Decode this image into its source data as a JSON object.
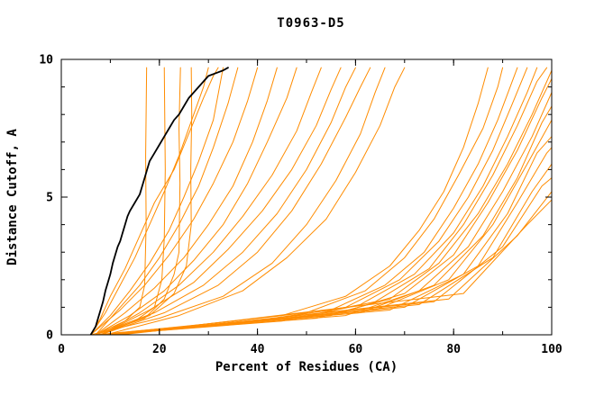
{
  "title": "T0963-D5",
  "chart_data": {
    "type": "line",
    "title": "T0963-D5",
    "xlabel": "Percent of Residues (CA)",
    "ylabel": "Distance Cutoff, A",
    "xlim": [
      0,
      100
    ],
    "ylim": [
      0,
      10
    ],
    "x_ticks": [
      0,
      20,
      40,
      60,
      80,
      100
    ],
    "y_ticks": [
      0,
      5,
      10
    ],
    "x_minor_step": 10,
    "y_minor_step": 1,
    "grid": false,
    "legend": "none",
    "colors": {
      "model_lines": "#ff8c00",
      "highlight_line": "#000000",
      "frame": "#000000",
      "background": "#ffffff"
    },
    "highlight_series": {
      "name": "highlighted-model",
      "points": [
        [
          6,
          0
        ],
        [
          7,
          0.3
        ],
        [
          7.5,
          0.6
        ],
        [
          8,
          0.9
        ],
        [
          8.5,
          1.2
        ],
        [
          9,
          1.6
        ],
        [
          9.5,
          1.9
        ],
        [
          10,
          2.2
        ],
        [
          10.5,
          2.6
        ],
        [
          11,
          2.9
        ],
        [
          11.5,
          3.2
        ],
        [
          12,
          3.4
        ],
        [
          12.5,
          3.7
        ],
        [
          13,
          4.0
        ],
        [
          13.5,
          4.3
        ],
        [
          14,
          4.5
        ],
        [
          15,
          4.8
        ],
        [
          16,
          5.1
        ],
        [
          16.5,
          5.4
        ],
        [
          17,
          5.7
        ],
        [
          17.5,
          6.0
        ],
        [
          18,
          6.3
        ],
        [
          19,
          6.6
        ],
        [
          20,
          6.9
        ],
        [
          21,
          7.2
        ],
        [
          22,
          7.5
        ],
        [
          23,
          7.8
        ],
        [
          24,
          8.0
        ],
        [
          25,
          8.3
        ],
        [
          26,
          8.6
        ],
        [
          27,
          8.8
        ],
        [
          28,
          9.0
        ],
        [
          29,
          9.2
        ],
        [
          30,
          9.4
        ],
        [
          31.5,
          9.5
        ],
        [
          33,
          9.6
        ],
        [
          34,
          9.7
        ]
      ]
    },
    "series": [
      {
        "points": [
          [
            7,
            0
          ],
          [
            13,
            0.5
          ],
          [
            16,
            1
          ],
          [
            17,
            1.8
          ],
          [
            17.3,
            4
          ],
          [
            17.2,
            6.5
          ],
          [
            17.4,
            9.7
          ]
        ]
      },
      {
        "points": [
          [
            8,
            0
          ],
          [
            15,
            0.5
          ],
          [
            19,
            1
          ],
          [
            20.5,
            2
          ],
          [
            21,
            3.5
          ],
          [
            21.2,
            6
          ],
          [
            21,
            9.7
          ]
        ]
      },
      {
        "points": [
          [
            7,
            0
          ],
          [
            17,
            0.6
          ],
          [
            21,
            1.3
          ],
          [
            23,
            2.2
          ],
          [
            24,
            3
          ],
          [
            24.2,
            5.5
          ],
          [
            24,
            7.5
          ],
          [
            24.3,
            9.7
          ]
        ]
      },
      {
        "points": [
          [
            8,
            0
          ],
          [
            18,
            0.7
          ],
          [
            23,
            1.5
          ],
          [
            25.5,
            2.5
          ],
          [
            26.5,
            4
          ],
          [
            26.4,
            6
          ],
          [
            26.6,
            8
          ],
          [
            26.5,
            9.7
          ]
        ]
      },
      {
        "points": [
          [
            6,
            0
          ],
          [
            9,
            0.8
          ],
          [
            12,
            1.8
          ],
          [
            15,
            2.8
          ],
          [
            18,
            4
          ],
          [
            21,
            5.2
          ],
          [
            24,
            6.5
          ],
          [
            27,
            8
          ],
          [
            29,
            9
          ],
          [
            30,
            9.7
          ]
        ]
      },
      {
        "points": [
          [
            6,
            0
          ],
          [
            10,
            0.7
          ],
          [
            14,
            1.6
          ],
          [
            18,
            2.6
          ],
          [
            22,
            3.8
          ],
          [
            25,
            5
          ],
          [
            28,
            6.3
          ],
          [
            31,
            7.8
          ],
          [
            33,
            9.7
          ]
        ]
      },
      {
        "points": [
          [
            7,
            0
          ],
          [
            11,
            0.8
          ],
          [
            16,
            1.8
          ],
          [
            20,
            2.8
          ],
          [
            24,
            4
          ],
          [
            28,
            5.4
          ],
          [
            31,
            6.8
          ],
          [
            34,
            8.4
          ],
          [
            36,
            9.7
          ]
        ]
      },
      {
        "points": [
          [
            6,
            0
          ],
          [
            12,
            0.9
          ],
          [
            17,
            1.8
          ],
          [
            22,
            2.9
          ],
          [
            27,
            4.2
          ],
          [
            31,
            5.5
          ],
          [
            35,
            7
          ],
          [
            38,
            8.5
          ],
          [
            40,
            9.7
          ]
        ]
      },
      {
        "points": [
          [
            7,
            0
          ],
          [
            13,
            0.8
          ],
          [
            19,
            1.7
          ],
          [
            25,
            2.8
          ],
          [
            30,
            4
          ],
          [
            35,
            5.4
          ],
          [
            39,
            7
          ],
          [
            42,
            8.5
          ],
          [
            44,
            9.7
          ]
        ]
      },
      {
        "points": [
          [
            7,
            0
          ],
          [
            14,
            0.7
          ],
          [
            21,
            1.6
          ],
          [
            27,
            2.7
          ],
          [
            33,
            4
          ],
          [
            38,
            5.5
          ],
          [
            42,
            7
          ],
          [
            46,
            8.6
          ],
          [
            48,
            9.7
          ]
        ]
      },
      {
        "points": [
          [
            8,
            0
          ],
          [
            16,
            0.8
          ],
          [
            24,
            1.8
          ],
          [
            31,
            3
          ],
          [
            37,
            4.3
          ],
          [
            43,
            5.8
          ],
          [
            48,
            7.4
          ],
          [
            51,
            8.8
          ],
          [
            53,
            9.7
          ]
        ]
      },
      {
        "points": [
          [
            8,
            0
          ],
          [
            18,
            0.9
          ],
          [
            27,
            1.9
          ],
          [
            34,
            3.1
          ],
          [
            41,
            4.5
          ],
          [
            47,
            6
          ],
          [
            52,
            7.6
          ],
          [
            55,
            8.9
          ],
          [
            57,
            9.7
          ]
        ]
      },
      {
        "points": [
          [
            7,
            0
          ],
          [
            19,
            0.8
          ],
          [
            29,
            1.8
          ],
          [
            37,
            3
          ],
          [
            44,
            4.4
          ],
          [
            50,
            6
          ],
          [
            55,
            7.7
          ],
          [
            58,
            9
          ],
          [
            60,
            9.7
          ]
        ]
      },
      {
        "points": [
          [
            8,
            0
          ],
          [
            21,
            0.8
          ],
          [
            32,
            1.8
          ],
          [
            40,
            3
          ],
          [
            47,
            4.5
          ],
          [
            53,
            6.2
          ],
          [
            58,
            7.9
          ],
          [
            61,
            9
          ],
          [
            63,
            9.7
          ]
        ]
      },
      {
        "points": [
          [
            6,
            0
          ],
          [
            20,
            0.6
          ],
          [
            33,
            1.4
          ],
          [
            43,
            2.6
          ],
          [
            50,
            4
          ],
          [
            56,
            5.6
          ],
          [
            61,
            7.3
          ],
          [
            64,
            8.8
          ],
          [
            66,
            9.7
          ]
        ]
      },
      {
        "points": [
          [
            9,
            0
          ],
          [
            24,
            0.7
          ],
          [
            37,
            1.6
          ],
          [
            46,
            2.8
          ],
          [
            54,
            4.2
          ],
          [
            60,
            5.9
          ],
          [
            65,
            7.6
          ],
          [
            68,
            9
          ],
          [
            70,
            9.7
          ]
        ]
      },
      {
        "points": [
          [
            7,
            0
          ],
          [
            25,
            0.3
          ],
          [
            45,
            0.7
          ],
          [
            58,
            1.4
          ],
          [
            67,
            2.5
          ],
          [
            73,
            3.8
          ],
          [
            78,
            5.2
          ],
          [
            82,
            6.8
          ],
          [
            85,
            8.4
          ],
          [
            87,
            9.7
          ]
        ]
      },
      {
        "points": [
          [
            8,
            0
          ],
          [
            30,
            0.4
          ],
          [
            50,
            0.8
          ],
          [
            62,
            1.6
          ],
          [
            70,
            2.8
          ],
          [
            76,
            4.2
          ],
          [
            81,
            5.8
          ],
          [
            86,
            7.5
          ],
          [
            89,
            9
          ],
          [
            90,
            9.7
          ]
        ]
      },
      {
        "points": [
          [
            7,
            0
          ],
          [
            35,
            0.4
          ],
          [
            55,
            0.9
          ],
          [
            66,
            1.8
          ],
          [
            74,
            3
          ],
          [
            80,
            4.6
          ],
          [
            85,
            6.2
          ],
          [
            89,
            7.8
          ],
          [
            93,
            9.7
          ]
        ]
      },
      {
        "points": [
          [
            8,
            0
          ],
          [
            40,
            0.5
          ],
          [
            58,
            1
          ],
          [
            69,
            2
          ],
          [
            77,
            3.4
          ],
          [
            83,
            5
          ],
          [
            88,
            6.7
          ],
          [
            92,
            8.4
          ],
          [
            95,
            9.7
          ]
        ]
      },
      {
        "points": [
          [
            9,
            0
          ],
          [
            45,
            0.5
          ],
          [
            61,
            1.1
          ],
          [
            72,
            2.2
          ],
          [
            80,
            3.7
          ],
          [
            86,
            5.4
          ],
          [
            91,
            7.2
          ],
          [
            95,
            8.8
          ],
          [
            97,
            9.7
          ]
        ]
      },
      {
        "points": [
          [
            8,
            0
          ],
          [
            48,
            0.6
          ],
          [
            64,
            1.2
          ],
          [
            75,
            2.4
          ],
          [
            82,
            4
          ],
          [
            88,
            5.8
          ],
          [
            93,
            7.6
          ],
          [
            97,
            9.2
          ],
          [
            99,
            9.7
          ]
        ]
      },
      {
        "points": [
          [
            7,
            0
          ],
          [
            52,
            0.6
          ],
          [
            67,
            1.3
          ],
          [
            77,
            2.6
          ],
          [
            85,
            4.4
          ],
          [
            91,
            6.2
          ],
          [
            96,
            8
          ],
          [
            100,
            9.6
          ]
        ]
      },
      {
        "points": [
          [
            8,
            0
          ],
          [
            55,
            0.7
          ],
          [
            70,
            1.5
          ],
          [
            80,
            2.9
          ],
          [
            87,
            4.8
          ],
          [
            93,
            6.7
          ],
          [
            98,
            8.6
          ],
          [
            100,
            9.3
          ]
        ]
      },
      {
        "points": [
          [
            9,
            0
          ],
          [
            58,
            0.7
          ],
          [
            73,
            1.6
          ],
          [
            83,
            3.2
          ],
          [
            90,
            5.2
          ],
          [
            96,
            7.2
          ],
          [
            100,
            8.8
          ]
        ]
      },
      {
        "points": [
          [
            8,
            0
          ],
          [
            61,
            0.8
          ],
          [
            76,
            1.8
          ],
          [
            86,
            3.6
          ],
          [
            93,
            5.7
          ],
          [
            98,
            7.7
          ],
          [
            100,
            8.3
          ]
        ]
      },
      {
        "points": [
          [
            10,
            0
          ],
          [
            64,
            0.9
          ],
          [
            79,
            2
          ],
          [
            88,
            4
          ],
          [
            95,
            6.2
          ],
          [
            100,
            7.8
          ]
        ]
      },
      {
        "points": [
          [
            9,
            0
          ],
          [
            67,
            0.9
          ],
          [
            82,
            2.2
          ],
          [
            91,
            4.4
          ],
          [
            97,
            6.6
          ],
          [
            100,
            7.2
          ]
        ]
      },
      {
        "points": [
          [
            10,
            0
          ],
          [
            70,
            1
          ],
          [
            85,
            2.5
          ],
          [
            93,
            4.8
          ],
          [
            99,
            6.6
          ],
          [
            100,
            6.8
          ]
        ]
      },
      {
        "points": [
          [
            11,
            0
          ],
          [
            73,
            1.1
          ],
          [
            88,
            2.8
          ],
          [
            96,
            5.2
          ],
          [
            100,
            6.2
          ]
        ]
      },
      {
        "points": [
          [
            10,
            0
          ],
          [
            76,
            1.2
          ],
          [
            90,
            3.2
          ],
          [
            98,
            5.4
          ],
          [
            100,
            5.7
          ]
        ]
      },
      {
        "points": [
          [
            12,
            0
          ],
          [
            79,
            1.3
          ],
          [
            93,
            3.6
          ],
          [
            100,
            5.2
          ]
        ]
      },
      {
        "points": [
          [
            11,
            0
          ],
          [
            82,
            1.5
          ],
          [
            95,
            4
          ],
          [
            100,
            4.9
          ]
        ]
      },
      {
        "points": [
          [
            6,
            0
          ],
          [
            8,
            0.6
          ],
          [
            10,
            1.4
          ],
          [
            13,
            2.4
          ],
          [
            16,
            3.6
          ],
          [
            19,
            4.8
          ],
          [
            23,
            6
          ],
          [
            26,
            7.3
          ],
          [
            29,
            8.6
          ],
          [
            31,
            9.4
          ],
          [
            32,
            9.7
          ]
        ]
      }
    ]
  }
}
